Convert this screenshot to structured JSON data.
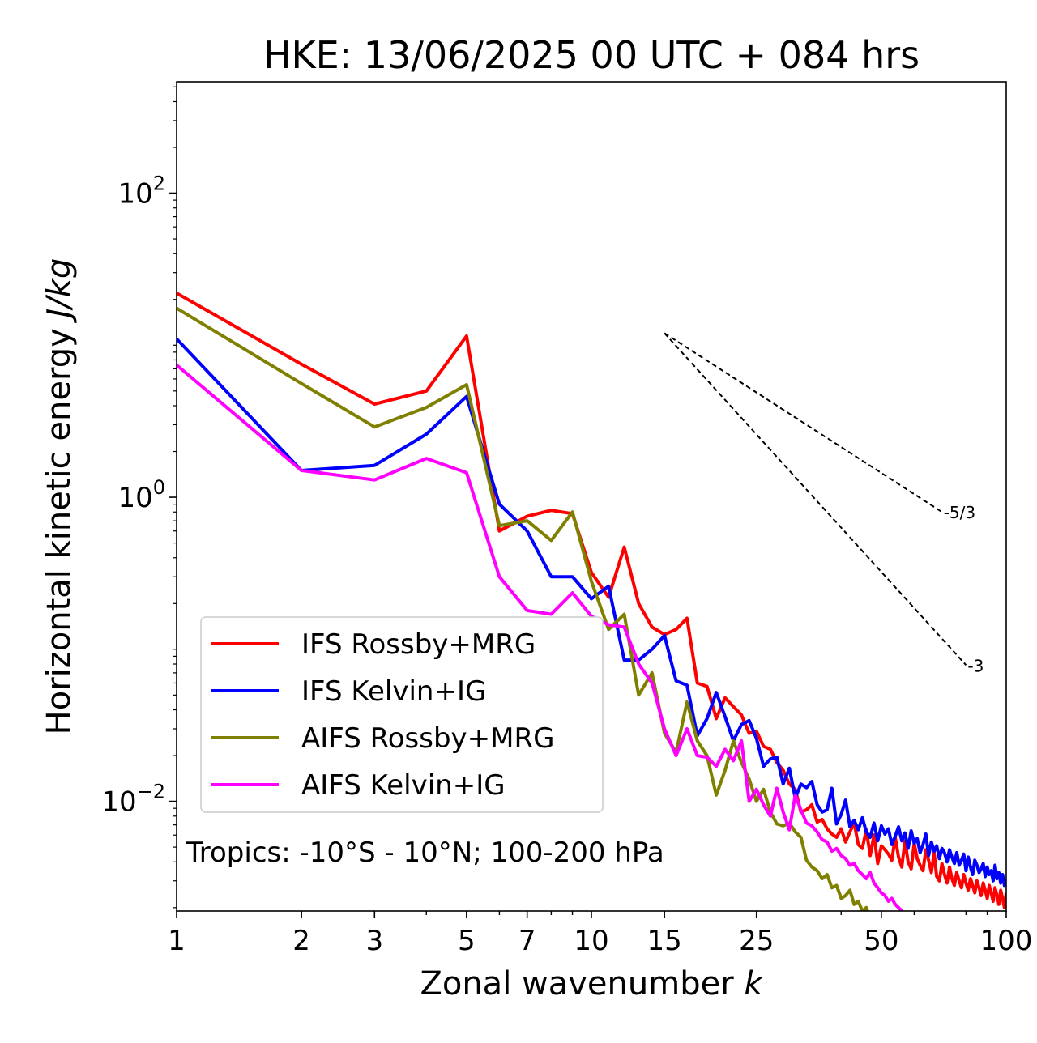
{
  "chart_data": {
    "type": "line",
    "title": "HKE: 13/06/2025 00 UTC + 084 hrs",
    "xlabel": "Zonal wavenumber k",
    "xlabel_main": "Zonal wavenumber ",
    "xlabel_var": "k",
    "ylabel": "Horizontal kinetic energy J/kg",
    "ylabel_main": "Horizontal kinetic energy ",
    "ylabel_var": "J/kg",
    "x_scale": "log",
    "y_scale": "log",
    "xlim": [
      1,
      100
    ],
    "ylim": [
      0.0019,
      540
    ],
    "x_ticks": [
      1,
      2,
      3,
      5,
      7,
      10,
      15,
      25,
      50,
      100
    ],
    "x_tick_labels": [
      "1",
      "2",
      "3",
      "5",
      "7",
      "10",
      "15",
      "25",
      "50",
      "100"
    ],
    "y_ticks": [
      0.01,
      1,
      100
    ],
    "y_tick_bases": [
      "10",
      "10",
      "10"
    ],
    "y_tick_exps": [
      "−2",
      "0",
      "2"
    ],
    "grid": false,
    "legend_position": "lower-left",
    "annotation": "Tropics: -10°S - 10°N; 100-200 hPa",
    "reference_lines": [
      {
        "label": "-5/3",
        "slope": -1.6667,
        "x": [
          15,
          70
        ],
        "y": [
          12.0,
          0.8
        ]
      },
      {
        "label": "-3",
        "slope": -3,
        "x": [
          15,
          80
        ],
        "y": [
          12.0,
          0.0787
        ]
      }
    ],
    "series": [
      {
        "name": "IFS Rossby+MRG",
        "color": "#ff0000",
        "x": [
          1,
          2,
          3,
          4,
          5,
          6,
          7,
          8,
          9,
          10,
          11,
          12,
          13,
          14,
          15,
          16,
          17,
          18,
          19,
          20,
          21,
          22,
          23,
          24,
          25,
          26,
          27,
          28,
          29,
          30,
          31,
          32,
          33,
          34,
          35,
          36,
          37,
          38,
          39,
          40,
          41,
          42,
          43,
          44,
          45,
          46,
          47,
          48,
          49,
          50,
          51,
          52,
          53,
          54,
          55,
          56,
          57,
          58,
          59,
          60,
          61,
          62,
          63,
          64,
          65,
          66,
          67,
          68,
          69,
          70,
          71,
          72,
          73,
          74,
          75,
          76,
          77,
          78,
          79,
          80,
          81,
          82,
          83,
          84,
          85,
          86,
          87,
          88,
          89,
          90,
          91,
          92,
          93,
          94,
          95,
          96,
          97,
          98,
          99,
          100
        ],
        "y": [
          22,
          7.5,
          4.1,
          5.0,
          11.5,
          0.6,
          0.75,
          0.82,
          0.78,
          0.32,
          0.22,
          0.47,
          0.2,
          0.14,
          0.125,
          0.135,
          0.16,
          0.06,
          0.057,
          0.035,
          0.048,
          0.042,
          0.037,
          0.028,
          0.029,
          0.023,
          0.022,
          0.018,
          0.016,
          0.013,
          0.012,
          0.0085,
          0.0088,
          0.0095,
          0.0073,
          0.0076,
          0.0066,
          0.0061,
          0.0058,
          0.0066,
          0.0054,
          0.0063,
          0.0072,
          0.0052,
          0.0049,
          0.0065,
          0.0044,
          0.006,
          0.0039,
          0.0051,
          0.0048,
          0.0045,
          0.0041,
          0.0058,
          0.0043,
          0.0037,
          0.0055,
          0.004,
          0.0036,
          0.0053,
          0.0042,
          0.0038,
          0.0035,
          0.0048,
          0.0041,
          0.0034,
          0.0046,
          0.0032,
          0.003,
          0.0039,
          0.0033,
          0.0029,
          0.0037,
          0.0031,
          0.0028,
          0.0034,
          0.003,
          0.0027,
          0.0033,
          0.0029,
          0.0026,
          0.0031,
          0.0028,
          0.0025,
          0.003,
          0.0027,
          0.0024,
          0.0029,
          0.0026,
          0.0023,
          0.0028,
          0.0025,
          0.0022,
          0.0027,
          0.0024,
          0.0021,
          0.0026,
          0.0023,
          0.002,
          0.0025
        ]
      },
      {
        "name": "IFS Kelvin+IG",
        "color": "#0000ff",
        "x": [
          1,
          2,
          3,
          4,
          5,
          6,
          7,
          8,
          9,
          10,
          11,
          12,
          13,
          14,
          15,
          16,
          17,
          18,
          19,
          20,
          21,
          22,
          23,
          24,
          25,
          26,
          27,
          28,
          29,
          30,
          31,
          32,
          33,
          34,
          35,
          36,
          37,
          38,
          39,
          40,
          41,
          42,
          43,
          44,
          45,
          46,
          47,
          48,
          49,
          50,
          51,
          52,
          53,
          54,
          55,
          56,
          57,
          58,
          59,
          60,
          61,
          62,
          63,
          64,
          65,
          66,
          67,
          68,
          69,
          70,
          71,
          72,
          73,
          74,
          75,
          76,
          77,
          78,
          79,
          80,
          81,
          82,
          83,
          84,
          85,
          86,
          87,
          88,
          89,
          90,
          91,
          92,
          93,
          94,
          95,
          96,
          97,
          98,
          99,
          100
        ],
        "y": [
          11.0,
          1.5,
          1.62,
          2.6,
          4.6,
          0.9,
          0.6,
          0.3,
          0.3,
          0.215,
          0.26,
          0.085,
          0.085,
          0.1,
          0.123,
          0.062,
          0.058,
          0.027,
          0.035,
          0.052,
          0.036,
          0.025,
          0.032,
          0.034,
          0.026,
          0.017,
          0.019,
          0.0195,
          0.013,
          0.0165,
          0.0105,
          0.013,
          0.0123,
          0.0135,
          0.0095,
          0.0085,
          0.0088,
          0.0122,
          0.0071,
          0.0082,
          0.0102,
          0.0068,
          0.0075,
          0.0065,
          0.0078,
          0.0063,
          0.0058,
          0.0072,
          0.0055,
          0.0069,
          0.0061,
          0.0066,
          0.0052,
          0.0059,
          0.0068,
          0.0055,
          0.0062,
          0.0049,
          0.0064,
          0.0053,
          0.0057,
          0.0046,
          0.0052,
          0.0061,
          0.0044,
          0.0054,
          0.0047,
          0.0051,
          0.0042,
          0.0049,
          0.0046,
          0.004,
          0.0048,
          0.0043,
          0.0039,
          0.0046,
          0.0038,
          0.0041,
          0.0045,
          0.0035,
          0.0043,
          0.0037,
          0.0033,
          0.0041,
          0.0038,
          0.0034,
          0.0036,
          0.0039,
          0.0032,
          0.0037,
          0.0033,
          0.0035,
          0.003,
          0.0038,
          0.0031,
          0.0034,
          0.0029,
          0.0033,
          0.0028,
          0.0031
        ]
      },
      {
        "name": "AIFS Rossby+MRG",
        "color": "#808000",
        "x": [
          1,
          2,
          3,
          4,
          5,
          6,
          7,
          8,
          9,
          10,
          11,
          12,
          13,
          14,
          15,
          16,
          17,
          18,
          19,
          20,
          21,
          22,
          23,
          24,
          25,
          26,
          27,
          28,
          29,
          30,
          31,
          32,
          33,
          34,
          35,
          36,
          37,
          38,
          39,
          40,
          41,
          42,
          43,
          44,
          45,
          46,
          47,
          48,
          49,
          50
        ],
        "y": [
          17.5,
          5.6,
          2.9,
          3.9,
          5.5,
          0.65,
          0.7,
          0.52,
          0.8,
          0.28,
          0.135,
          0.17,
          0.05,
          0.07,
          0.028,
          0.021,
          0.045,
          0.025,
          0.02,
          0.011,
          0.016,
          0.025,
          0.018,
          0.014,
          0.01,
          0.012,
          0.0085,
          0.0071,
          0.0069,
          0.0072,
          0.0063,
          0.0058,
          0.0041,
          0.0037,
          0.0035,
          0.0031,
          0.0033,
          0.0027,
          0.0028,
          0.0023,
          0.0024,
          0.0026,
          0.0021,
          0.0022,
          0.0019,
          0.002,
          0.0017,
          0.0016,
          0.0014,
          0.0013
        ]
      },
      {
        "name": "AIFS Kelvin+IG",
        "color": "#ff00ff",
        "x": [
          1,
          2,
          3,
          4,
          5,
          6,
          7,
          8,
          9,
          10,
          11,
          12,
          13,
          14,
          15,
          16,
          17,
          18,
          19,
          20,
          21,
          22,
          23,
          24,
          25,
          26,
          27,
          28,
          29,
          30,
          31,
          32,
          33,
          34,
          35,
          36,
          37,
          38,
          39,
          40,
          41,
          42,
          43,
          44,
          45,
          46,
          47,
          48,
          49,
          50,
          51,
          52,
          53,
          54,
          55,
          56,
          57,
          58
        ],
        "y": [
          7.4,
          1.5,
          1.3,
          1.8,
          1.45,
          0.3,
          0.18,
          0.17,
          0.235,
          0.165,
          0.145,
          0.14,
          0.08,
          0.06,
          0.03,
          0.02,
          0.03,
          0.02,
          0.0195,
          0.017,
          0.022,
          0.0185,
          0.025,
          0.01,
          0.012,
          0.0095,
          0.008,
          0.0122,
          0.0085,
          0.0065,
          0.011,
          0.0088,
          0.0072,
          0.0069,
          0.0063,
          0.0056,
          0.0054,
          0.0047,
          0.0049,
          0.0044,
          0.0042,
          0.0038,
          0.0039,
          0.0035,
          0.0033,
          0.0031,
          0.0034,
          0.0029,
          0.0027,
          0.0025,
          0.0024,
          0.0022,
          0.0023,
          0.0021,
          0.002,
          0.0019,
          0.0018,
          0.0017
        ]
      }
    ]
  }
}
